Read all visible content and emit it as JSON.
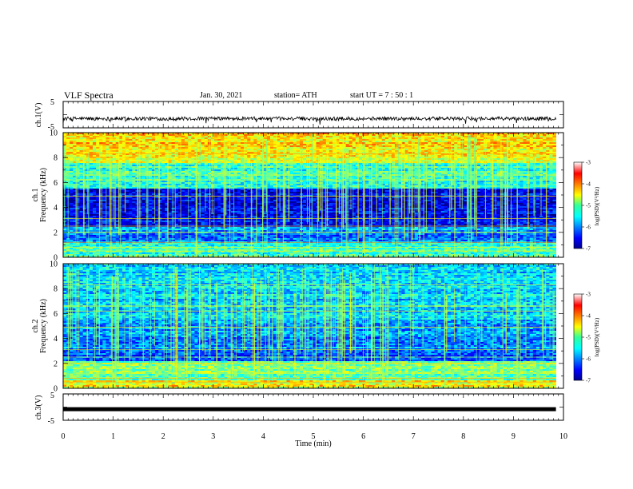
{
  "header": {
    "title": "VLF Spectra",
    "date": "Jan. 30, 2021",
    "station": "station= ATH",
    "start": "start  UT =   7 : 50 : 1"
  },
  "chart_data": [
    {
      "type": "line",
      "panel": "ch1-voltage",
      "ylabel": "ch.1(V)",
      "ylim": [
        -5,
        5
      ],
      "yticks": [
        "5",
        "-5"
      ],
      "xlim": [
        0,
        10
      ],
      "baseline_value": -1.5,
      "noise_amplitude": 0.7,
      "x_end": 9.85
    },
    {
      "type": "heatmap",
      "panel": "ch1-spectrogram",
      "ylabel": "ch.1 Frequency (kHz)",
      "ylabel_line1": "ch.1",
      "ylabel_line2": "Frequency (kHz)",
      "ylim": [
        0,
        10
      ],
      "yticks": [
        "0",
        "2",
        "4",
        "6",
        "8",
        "10"
      ],
      "xlim": [
        0,
        10
      ],
      "x_end": 9.85,
      "colorbar": {
        "label": "log(PSD)(V²/Hz)",
        "ticks": [
          "-3",
          "-4",
          "-5",
          "-6",
          "-7"
        ],
        "range": [
          -7,
          -3
        ]
      }
    },
    {
      "type": "heatmap",
      "panel": "ch2-spectrogram",
      "ylabel": "ch.2 Frequency (kHz)",
      "ylabel_line1": "ch.2",
      "ylabel_line2": "Frequency (kHz)",
      "ylim": [
        0,
        10
      ],
      "yticks": [
        "0",
        "2",
        "4",
        "6",
        "8",
        "10"
      ],
      "xlim": [
        0,
        10
      ],
      "x_end": 9.85,
      "colorbar": {
        "label": "log(PSD)(V²/Hz)",
        "ticks": [
          "-3",
          "-4",
          "-5",
          "-6",
          "-7"
        ],
        "range": [
          -7,
          -3
        ]
      }
    },
    {
      "type": "line",
      "panel": "ch3-voltage",
      "ylabel": "ch.3(V)",
      "ylim": [
        -5,
        5
      ],
      "yticks": [
        "5",
        "-5"
      ],
      "xlim": [
        0,
        10
      ],
      "baseline_value": -0.8,
      "x_end": 9.85
    }
  ],
  "xaxis": {
    "label": "Time  (min)",
    "ticks": [
      "0",
      "1",
      "2",
      "3",
      "4",
      "5",
      "6",
      "7",
      "8",
      "9",
      "10"
    ]
  },
  "colors": {
    "trace": "#000000",
    "jet_low": "#00008f",
    "jet_high": "#8f0000"
  }
}
